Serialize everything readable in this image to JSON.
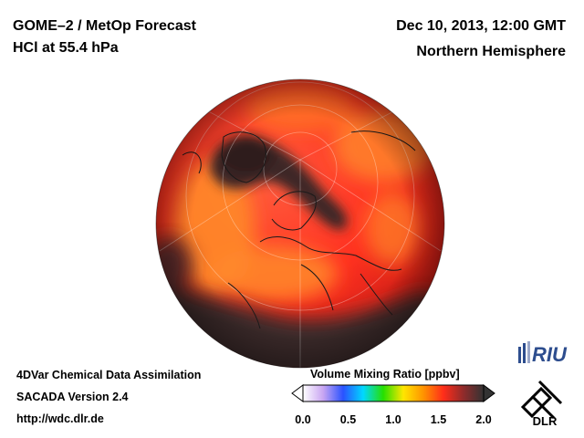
{
  "header": {
    "title_line1": "GOME–2 / MetOp Forecast",
    "title_line2": "HCl at 55.4 hPa",
    "date": "Dec 10, 2013, 12:00 GMT",
    "region": "Northern Hemisphere"
  },
  "footer": {
    "line1": "4DVar Chemical Data Assimilation",
    "line2": "SACADA Version 2.4",
    "url": "http://wdc.dlr.de"
  },
  "colorbar": {
    "title": "Volume Mixing Ratio [ppbv]",
    "ticks": [
      "0.0",
      "0.5",
      "1.0",
      "1.5",
      "2.0"
    ],
    "tick_values": [
      0.0,
      0.5,
      1.0,
      1.5,
      2.0
    ],
    "range": [
      0.0,
      2.0
    ],
    "colors": [
      "#ffffff",
      "#c9a6f2",
      "#2a52ff",
      "#00d8ff",
      "#26e000",
      "#ffe600",
      "#ff9300",
      "#ff2d1a",
      "#8f2b2b",
      "#333333"
    ]
  },
  "logos": {
    "riu": "RIU",
    "dlr": "DLR"
  },
  "map": {
    "projection": "orthographic-north-polar",
    "dominant_color": "#ff3b24",
    "low_values_color": "#3a2a2a",
    "ocean_outline": "#1a1a1a"
  }
}
